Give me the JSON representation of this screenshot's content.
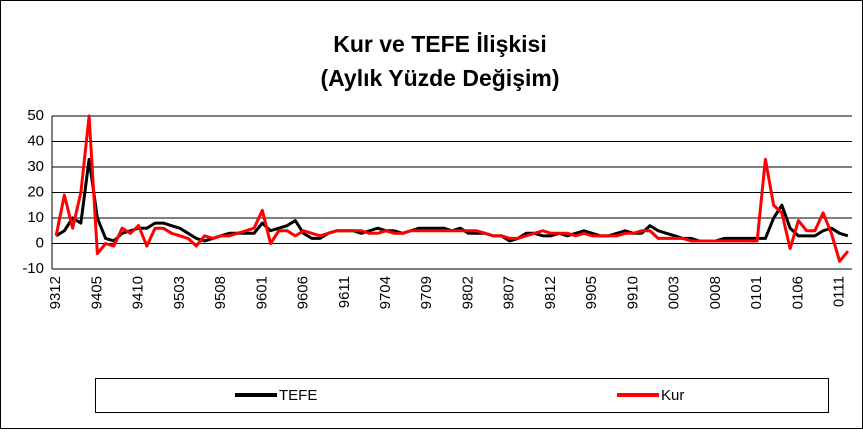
{
  "chart_data": {
    "type": "line",
    "title": [
      "Kur ve TEFE İlişkisi",
      "(Aylık Yüzde Değişim)"
    ],
    "categories": [
      "9312",
      null,
      null,
      null,
      null,
      "9405",
      null,
      null,
      null,
      null,
      "9410",
      null,
      null,
      null,
      null,
      "9503",
      null,
      null,
      null,
      null,
      "9508",
      null,
      null,
      null,
      null,
      "9601",
      null,
      null,
      null,
      null,
      "9606",
      null,
      null,
      null,
      null,
      "9611",
      null,
      null,
      null,
      null,
      "9704",
      null,
      null,
      null,
      null,
      "9709",
      null,
      null,
      null,
      null,
      "9802",
      null,
      null,
      null,
      null,
      "9807",
      null,
      null,
      null,
      null,
      "9812",
      null,
      null,
      null,
      null,
      "9905",
      null,
      null,
      null,
      null,
      "9910",
      null,
      null,
      null,
      null,
      "0003",
      null,
      null,
      null,
      null,
      "0008",
      null,
      null,
      null,
      null,
      "0101",
      null,
      null,
      null,
      null,
      "0106",
      null,
      null,
      null,
      null,
      "0111",
      null
    ],
    "series": [
      {
        "name": "TEFE",
        "color": "#000000",
        "values": [
          3,
          5,
          10,
          8,
          33,
          10,
          2,
          1,
          4,
          5,
          6,
          6,
          8,
          8,
          7,
          6,
          4,
          2,
          1,
          2,
          3,
          4,
          4,
          4,
          4,
          8,
          5,
          6,
          7,
          9,
          4,
          2,
          2,
          4,
          5,
          5,
          5,
          4,
          5,
          6,
          5,
          5,
          4,
          5,
          6,
          6,
          6,
          6,
          5,
          6,
          4,
          4,
          4,
          3,
          3,
          1,
          2,
          4,
          4,
          3,
          3,
          4,
          3,
          4,
          5,
          4,
          3,
          3,
          4,
          5,
          4,
          4,
          7,
          5,
          4,
          3,
          2,
          2,
          1,
          1,
          1,
          2,
          2,
          2,
          2,
          2,
          2,
          10,
          15,
          6,
          3,
          3,
          3,
          5,
          6,
          4,
          3
        ]
      },
      {
        "name": "Kur",
        "color": "#ff0000",
        "values": [
          3,
          19,
          6,
          20,
          50,
          -4,
          0,
          -1,
          6,
          4,
          7,
          -1,
          6,
          6,
          4,
          3,
          2,
          -1,
          3,
          2,
          3,
          3,
          4,
          5,
          6,
          13,
          0,
          5,
          5,
          3,
          5,
          4,
          3,
          4,
          5,
          5,
          5,
          5,
          4,
          4,
          5,
          4,
          4,
          5,
          5,
          5,
          5,
          5,
          5,
          5,
          5,
          5,
          4,
          3,
          3,
          2,
          2,
          3,
          4,
          5,
          4,
          4,
          4,
          3,
          4,
          3,
          3,
          3,
          3,
          4,
          4,
          5,
          5,
          2,
          2,
          2,
          2,
          1,
          1,
          1,
          1,
          1,
          1,
          1,
          1,
          1,
          33,
          15,
          12,
          -2,
          9,
          5,
          5,
          12,
          4,
          -7,
          -3
        ]
      }
    ],
    "ylim": [
      -10,
      50
    ],
    "yticks": [
      -10,
      0,
      10,
      20,
      30,
      40,
      50
    ],
    "grid": true
  }
}
